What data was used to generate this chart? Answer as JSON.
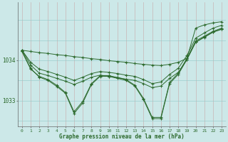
{
  "background_color": "#cce8e8",
  "line_color": "#2d6a2d",
  "grid_color_v": "#c8b8b8",
  "grid_color_h": "#a8d0d0",
  "title": "Graphe pression niveau de la mer (hPa)",
  "ylabel_ticks": [
    1033,
    1034
  ],
  "xlim": [
    -0.5,
    23.5
  ],
  "ylim": [
    1032.35,
    1035.45
  ],
  "series": [
    [
      1034.25,
      1034.22,
      1034.19,
      1034.17,
      1034.14,
      1034.12,
      1034.09,
      1034.07,
      1034.04,
      1034.02,
      1033.99,
      1033.97,
      1033.95,
      1033.92,
      1033.9,
      1033.88,
      1033.87,
      1033.9,
      1033.95,
      1034.05,
      1034.8,
      1034.88,
      1034.93,
      1034.96
    ],
    [
      1034.25,
      1033.95,
      1033.78,
      1033.72,
      1033.65,
      1033.58,
      1033.5,
      1033.58,
      1033.67,
      1033.72,
      1033.7,
      1033.67,
      1033.63,
      1033.6,
      1033.52,
      1033.42,
      1033.46,
      1033.65,
      1033.8,
      1034.12,
      1034.55,
      1034.68,
      1034.8,
      1034.87
    ],
    [
      1034.25,
      1033.88,
      1033.68,
      1033.62,
      1033.55,
      1033.48,
      1033.4,
      1033.48,
      1033.58,
      1033.63,
      1033.6,
      1033.57,
      1033.53,
      1033.5,
      1033.42,
      1033.32,
      1033.36,
      1033.55,
      1033.7,
      1034.02,
      1034.45,
      1034.58,
      1034.7,
      1034.77
    ],
    [
      1034.22,
      1033.78,
      1033.6,
      1033.52,
      1033.38,
      1033.2,
      1032.72,
      1032.98,
      1033.42,
      1033.62,
      1033.62,
      1033.57,
      1033.52,
      1033.38,
      1033.05,
      1032.58,
      1032.58,
      1033.45,
      1033.68,
      1034.05,
      1034.48,
      1034.6,
      1034.72,
      1034.8
    ],
    [
      1034.22,
      1033.8,
      1033.58,
      1033.5,
      1033.35,
      1033.18,
      1032.68,
      1032.94,
      1033.4,
      1033.6,
      1033.6,
      1033.55,
      1033.5,
      1033.36,
      1033.02,
      1032.55,
      1032.55,
      1033.42,
      1033.65,
      1034.02,
      1034.45,
      1034.57,
      1034.7,
      1034.78
    ]
  ]
}
